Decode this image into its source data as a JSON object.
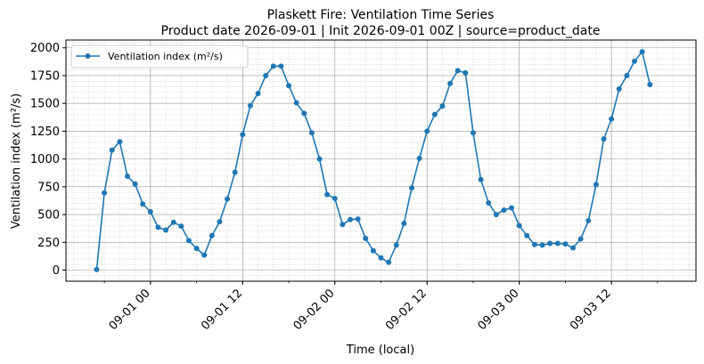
{
  "chart_data": {
    "type": "line",
    "title": "Plaskett Fire: Ventilation Time Series",
    "subtitle": "Product date 2026-09-01 | Init 2026-09-01 00Z | source=product_date",
    "xlabel": "Time (local)",
    "ylabel": "Ventilation index (m²/s)",
    "legend_position": "top-left",
    "grid": true,
    "color": "#1f77b4",
    "x_start": "2026-08-31 17:00",
    "x_step_hours": 1,
    "xlim": [
      "2026-08-31 13:00",
      "2026-09-03 23:00"
    ],
    "ylim": [
      -100,
      2070
    ],
    "yticks": [
      0,
      250,
      500,
      750,
      1000,
      1250,
      1500,
      1750,
      2000
    ],
    "xticks": [
      {
        "datetime": "2026-09-01 00:00",
        "label": "09-01 00"
      },
      {
        "datetime": "2026-09-01 12:00",
        "label": "09-01 12"
      },
      {
        "datetime": "2026-09-02 00:00",
        "label": "09-02 00"
      },
      {
        "datetime": "2026-09-02 12:00",
        "label": "09-02 12"
      },
      {
        "datetime": "2026-09-03 00:00",
        "label": "09-03 00"
      },
      {
        "datetime": "2026-09-03 12:00",
        "label": "09-03 12"
      }
    ],
    "series": [
      {
        "name": "Ventilation index (m²/s)",
        "values": [
          5,
          695,
          1080,
          1155,
          845,
          775,
          595,
          525,
          385,
          360,
          430,
          395,
          265,
          195,
          135,
          310,
          435,
          640,
          880,
          1220,
          1480,
          1590,
          1750,
          1835,
          1835,
          1660,
          1505,
          1410,
          1235,
          1000,
          680,
          645,
          410,
          455,
          460,
          285,
          175,
          110,
          70,
          225,
          420,
          740,
          1005,
          1250,
          1400,
          1475,
          1680,
          1795,
          1775,
          1235,
          815,
          605,
          500,
          540,
          560,
          400,
          310,
          230,
          225,
          240,
          240,
          235,
          200,
          280,
          445,
          770,
          1180,
          1360,
          1630,
          1750,
          1880,
          1965,
          1670
        ]
      }
    ]
  }
}
